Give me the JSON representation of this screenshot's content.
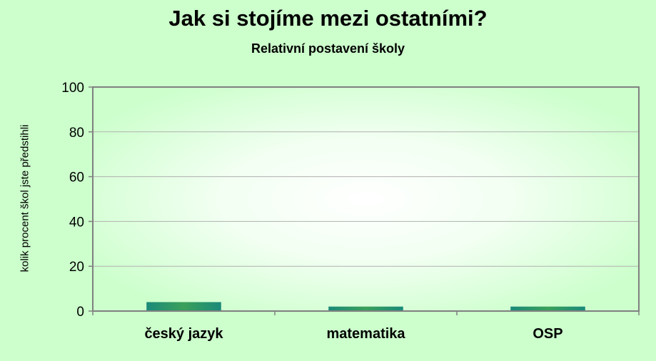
{
  "chart_data": {
    "type": "bar",
    "title": "Jak si stojíme mezi ostatními?",
    "subtitle": "Relativní postavení školy",
    "ylabel": "kolik procent škol jste předstihli",
    "xlabel": "",
    "categories": [
      "český jazyk",
      "matematika",
      "OSP"
    ],
    "values": [
      4,
      2,
      2
    ],
    "ylim": [
      0,
      100
    ],
    "yticks": [
      0,
      20,
      40,
      60,
      80,
      100
    ],
    "grid": true,
    "legend": "none"
  },
  "colors": {
    "background": "#ccffcc",
    "plot_light": "#ffffff",
    "plot_edge": "#ccffcc",
    "bar": "#1a8a7a",
    "bar_highlight": "#3aa85a",
    "grid": "#b0b0b0",
    "axis": "#808080"
  }
}
